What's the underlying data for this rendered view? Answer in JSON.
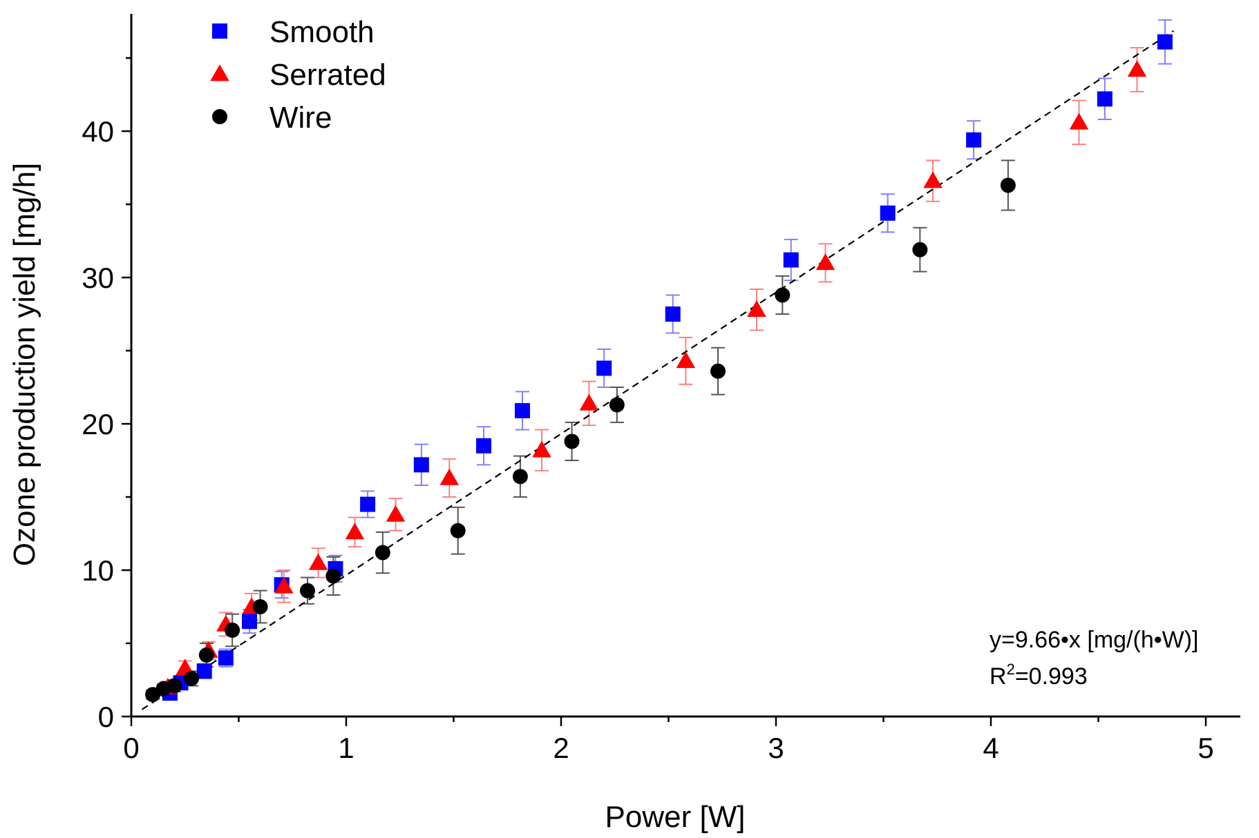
{
  "chart_data": {
    "type": "scatter",
    "xlabel": "Power [W]",
    "ylabel": "Ozone production yield [mg/h]",
    "xlim": [
      0,
      5.2
    ],
    "ylim": [
      0,
      48
    ],
    "x_ticks": [
      "0",
      "1",
      "2",
      "3",
      "4",
      "5"
    ],
    "y_ticks": [
      "0",
      "10",
      "20",
      "30",
      "40"
    ],
    "legend_position": "top-left",
    "grid": false,
    "series": [
      {
        "name": "Smooth",
        "marker": "square",
        "color": "#0000ff",
        "error_color": "#7f7fff",
        "x": [
          0.18,
          0.23,
          0.34,
          0.44,
          0.55,
          0.7,
          0.95,
          1.1,
          1.35,
          1.64,
          1.82,
          2.2,
          2.52,
          3.07,
          3.52,
          3.92,
          4.53,
          4.81
        ],
        "y": [
          1.6,
          2.3,
          3.1,
          4.0,
          6.5,
          9.0,
          10.1,
          14.5,
          17.2,
          18.5,
          20.9,
          23.8,
          27.5,
          31.2,
          34.4,
          39.4,
          42.2,
          46.1
        ],
        "err": [
          0.4,
          0.4,
          0.5,
          0.6,
          0.8,
          0.9,
          0.9,
          0.9,
          1.4,
          1.3,
          1.3,
          1.3,
          1.3,
          1.4,
          1.3,
          1.3,
          1.4,
          1.5
        ]
      },
      {
        "name": "Serrated",
        "marker": "triangle",
        "color": "#ff0000",
        "error_color": "#ff7f7f",
        "x": [
          0.17,
          0.25,
          0.36,
          0.44,
          0.56,
          0.71,
          0.87,
          1.04,
          1.23,
          1.48,
          1.91,
          2.13,
          2.58,
          2.91,
          3.23,
          3.73,
          4.41,
          4.68
        ],
        "y": [
          2.0,
          3.3,
          4.5,
          6.3,
          7.5,
          8.9,
          10.5,
          12.6,
          13.8,
          16.3,
          18.2,
          21.4,
          24.3,
          27.8,
          31.0,
          36.6,
          40.6,
          44.2
        ],
        "err": [
          0.4,
          0.5,
          0.6,
          0.8,
          0.9,
          1.1,
          1.0,
          1.0,
          1.1,
          1.3,
          1.4,
          1.5,
          1.6,
          1.4,
          1.3,
          1.4,
          1.5,
          1.5
        ]
      },
      {
        "name": "Wire",
        "marker": "circle",
        "color": "#000000",
        "error_color": "#555555",
        "x": [
          0.1,
          0.15,
          0.2,
          0.28,
          0.35,
          0.47,
          0.6,
          0.82,
          0.94,
          1.17,
          1.52,
          1.81,
          2.05,
          2.26,
          2.73,
          3.03,
          3.67,
          4.08
        ],
        "y": [
          1.5,
          1.9,
          2.1,
          2.6,
          4.2,
          5.9,
          7.5,
          8.6,
          9.6,
          11.2,
          12.7,
          16.4,
          18.8,
          21.3,
          23.6,
          28.8,
          31.9,
          36.3
        ],
        "err": [
          0.3,
          0.3,
          0.4,
          0.5,
          0.8,
          1.1,
          1.1,
          0.9,
          1.3,
          1.4,
          1.6,
          1.4,
          1.3,
          1.2,
          1.6,
          1.3,
          1.5,
          1.7
        ]
      }
    ],
    "fit": {
      "slope": 9.66,
      "style": "dashed",
      "color": "#000000"
    },
    "annotation": {
      "equation": "y=9.66•x [mg/(h•W)]",
      "r2_prefix": "R",
      "r2_sup": "2",
      "r2_value": "=0.993"
    }
  }
}
